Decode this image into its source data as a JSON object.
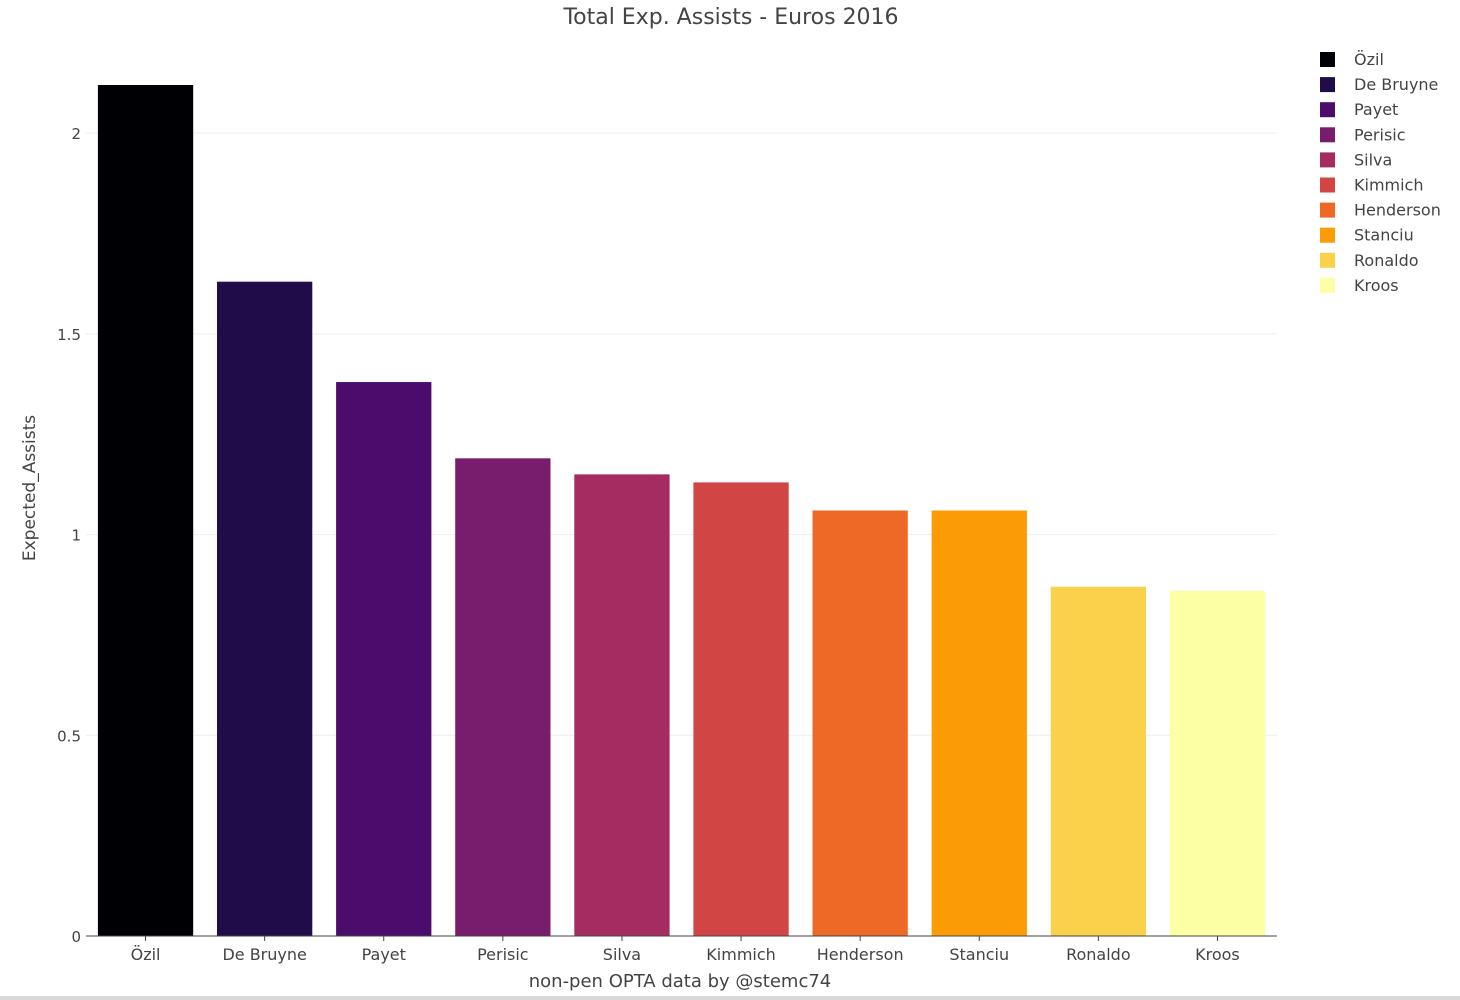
{
  "chart_data": {
    "type": "bar",
    "title": "Total Exp. Assists - Euros 2016",
    "xlabel": "non-pen OPTA data by @stemc74",
    "ylabel": "Expected_Assists",
    "categories": [
      "Özil",
      "De Bruyne",
      "Payet",
      "Perisic",
      "Silva",
      "Kimmich",
      "Henderson",
      "Stanciu",
      "Ronaldo",
      "Kroos"
    ],
    "values": [
      2.12,
      1.63,
      1.38,
      1.19,
      1.15,
      1.13,
      1.06,
      1.06,
      0.87,
      0.86
    ],
    "colors": [
      "#000004",
      "#1f0c48",
      "#4c0c6b",
      "#781c6d",
      "#a52c60",
      "#d14545",
      "#ed6925",
      "#fb9b06",
      "#f9d14b",
      "#fcffa4"
    ],
    "ylim": [
      0,
      2.12
    ],
    "yticks": [
      0,
      0.5,
      1,
      1.5,
      2
    ],
    "ytick_labels": [
      "0",
      "0.5",
      "1",
      "1.5",
      "2"
    ],
    "grid": true,
    "legend": {
      "position": "top-right",
      "entries": [
        "Özil",
        "De Bruyne",
        "Payet",
        "Perisic",
        "Silva",
        "Kimmich",
        "Henderson",
        "Stanciu",
        "Ronaldo",
        "Kroos"
      ]
    }
  }
}
